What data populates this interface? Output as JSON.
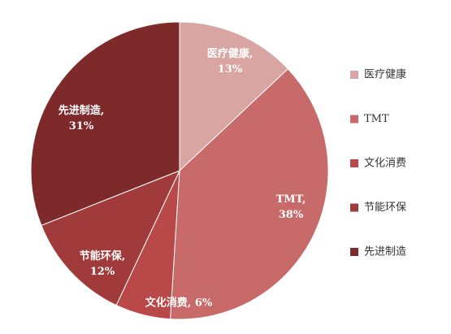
{
  "chart_data": {
    "type": "pie",
    "categories": [
      "医疗健康",
      "TMT",
      "文化消费",
      "节能环保",
      "先进制造"
    ],
    "values": [
      13,
      38,
      6,
      12,
      31
    ],
    "value_labels": [
      [
        "医疗健康,",
        "13%"
      ],
      [
        "TMT,",
        "38%"
      ],
      [
        "文化消费, 6%"
      ],
      [
        "节能环保,",
        "12%"
      ],
      [
        "先进制造,",
        "31%"
      ]
    ],
    "colors": [
      "#d9a5a2",
      "#c86a6a",
      "#b94848",
      "#a13b3b",
      "#7e2a2a"
    ],
    "legend": "right"
  }
}
